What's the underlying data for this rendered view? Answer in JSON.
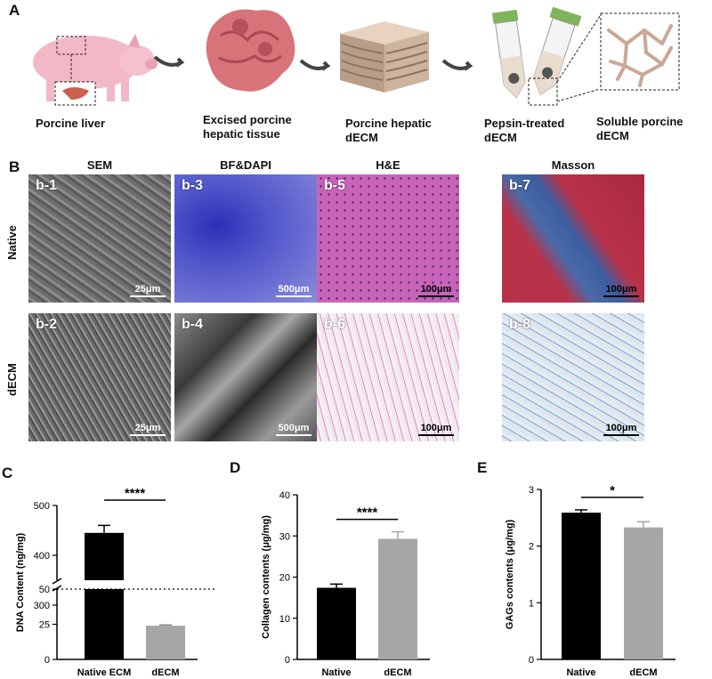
{
  "panel_a": {
    "letter": "A",
    "steps": [
      {
        "caption_lines": [
          "Porcine liver"
        ]
      },
      {
        "caption_lines": [
          "Excised porcine",
          "hepatic tissue"
        ]
      },
      {
        "caption_lines": [
          "Porcine hepatic",
          "dECM"
        ]
      },
      {
        "caption_lines": [
          "Pepsin-treated",
          "dECM"
        ]
      },
      {
        "caption_lines": [
          "Soluble porcine",
          "dECM"
        ]
      }
    ]
  },
  "panel_b": {
    "letter": "B",
    "columns": [
      "SEM",
      "BF&DAPI",
      "H&E",
      "Masson"
    ],
    "rows": [
      "Native",
      "dECM"
    ],
    "tiles": [
      {
        "label": "b-1",
        "scale": "25μm",
        "style": "sem-native"
      },
      {
        "label": "b-3",
        "scale": "500μm",
        "style": "dapi"
      },
      {
        "label": "b-5",
        "scale": "100μm",
        "style": "he-native"
      },
      {
        "label": "b-7",
        "scale": "100μm",
        "style": "masson-native"
      },
      {
        "label": "b-2",
        "scale": "25μm",
        "style": "sem-decm"
      },
      {
        "label": "b-4",
        "scale": "500μm",
        "style": "bf"
      },
      {
        "label": "b-6",
        "scale": "100μm",
        "style": "he-decm"
      },
      {
        "label": "b-8",
        "scale": "100μm",
        "style": "masson-decm"
      }
    ]
  },
  "chart_data": [
    {
      "panel": "C",
      "type": "bar",
      "categories": [
        "Native ECM",
        "dECM"
      ],
      "values": [
        445,
        24
      ],
      "errors": [
        15,
        0.5
      ],
      "ylabel": "DNA Content (ng/mg)",
      "axis_break": {
        "lower": [
          0,
          50
        ],
        "upper": [
          350,
          500
        ]
      },
      "ticks_lower": [
        "0",
        "25",
        "50"
      ],
      "ticks_upper": [
        "300",
        "400",
        "500"
      ],
      "significance": "****",
      "colors": [
        "#000000",
        "#a6a6a6"
      ]
    },
    {
      "panel": "D",
      "type": "bar",
      "categories": [
        "Native",
        "dECM"
      ],
      "values": [
        17.4,
        29.3
      ],
      "errors": [
        0.9,
        1.7
      ],
      "ylabel": "Collagen contents (μg/mg)",
      "ylim": [
        0,
        40
      ],
      "ticks": [
        "0",
        "10",
        "20",
        "30",
        "40"
      ],
      "significance": "****",
      "colors": [
        "#000000",
        "#a6a6a6"
      ]
    },
    {
      "panel": "E",
      "type": "bar",
      "categories": [
        "Native",
        "dECM"
      ],
      "values": [
        2.59,
        2.33
      ],
      "errors": [
        0.05,
        0.1
      ],
      "ylabel": "GAGs contents (μg/mg)",
      "ylim": [
        0,
        3
      ],
      "ticks": [
        "0",
        "1",
        "2",
        "3"
      ],
      "significance": "*",
      "colors": [
        "#000000",
        "#a6a6a6"
      ]
    }
  ]
}
